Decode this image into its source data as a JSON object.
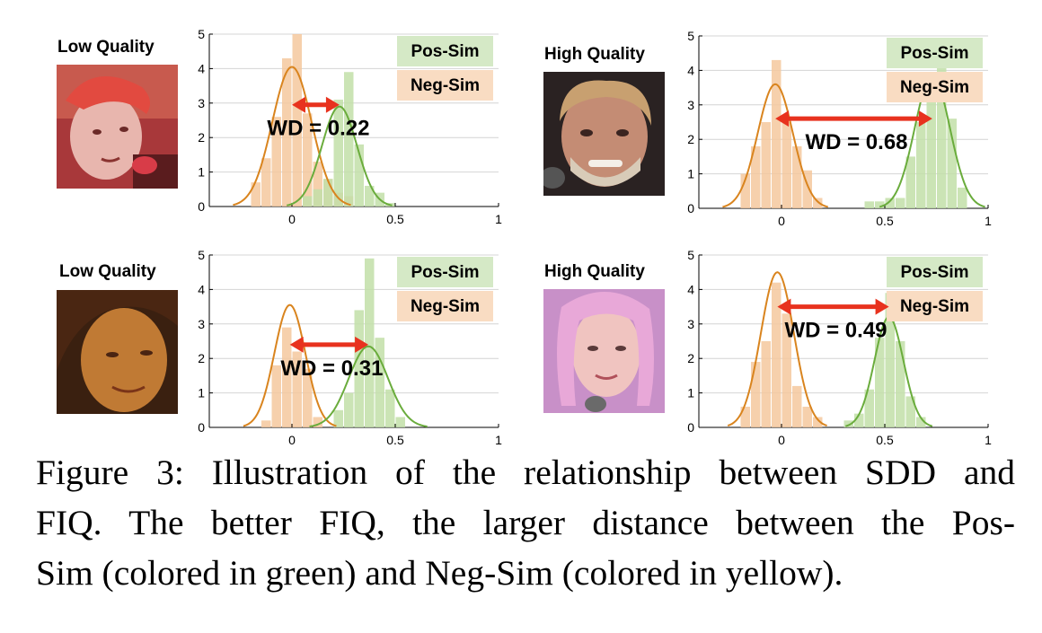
{
  "colors": {
    "pos_bar": "#c2dfa8",
    "neg_bar": "#f4c89e",
    "pos_curve": "#6aac3c",
    "neg_curve": "#d9841e",
    "arrow": "#e8321e",
    "grid": "#d4d4d4",
    "pos_legend_bg": "#d5e9c6",
    "neg_legend_bg": "#f9dcc2"
  },
  "panels": [
    {
      "quality_label": "Low Quality",
      "face_icon": "face-photo-red-tinted-singer",
      "legend": {
        "pos": "Pos-Sim",
        "neg": "Neg-Sim"
      },
      "wd_label": "WD = 0.22",
      "chart_data": {
        "type": "histogram",
        "xlim": [
          -0.4,
          1
        ],
        "ylim": [
          0,
          5
        ],
        "xticks": [
          "0",
          "0.5",
          "1"
        ],
        "yticks": [
          "0",
          "1",
          "2",
          "3",
          "4",
          "5"
        ],
        "grid": true,
        "legend_placement": "top-right",
        "bin_width": 0.05,
        "neg_sim": {
          "bins": [
            [
              -0.2,
              0.7
            ],
            [
              -0.15,
              1.4
            ],
            [
              -0.1,
              2.6
            ],
            [
              -0.05,
              4.3
            ],
            [
              0.0,
              5.0
            ],
            [
              0.05,
              2.7
            ],
            [
              0.1,
              1.3
            ],
            [
              0.15,
              0.8
            ],
            [
              0.2,
              0.4
            ],
            [
              0.25,
              0.3
            ]
          ],
          "fit": {
            "mean": 0.0,
            "peak": 4.05,
            "sd": 0.095
          }
        },
        "pos_sim": {
          "bins": [
            [
              0.05,
              0.3
            ],
            [
              0.1,
              0.5
            ],
            [
              0.15,
              0.8
            ],
            [
              0.2,
              3.1
            ],
            [
              0.25,
              3.9
            ],
            [
              0.3,
              1.8
            ],
            [
              0.35,
              0.6
            ],
            [
              0.4,
              0.4
            ],
            [
              0.45,
              0.1
            ]
          ],
          "fit": {
            "mean": 0.23,
            "peak": 2.9,
            "sd": 0.085
          }
        },
        "arrow": {
          "from": 0.0,
          "to": 0.23,
          "y": 2.95
        }
      }
    },
    {
      "quality_label": "High Quality",
      "face_icon": "face-photo-older-man-beard",
      "legend": {
        "pos": "Pos-Sim",
        "neg": "Neg-Sim"
      },
      "wd_label": "WD = 0.68",
      "chart_data": {
        "type": "histogram",
        "xlim": [
          -0.4,
          1
        ],
        "ylim": [
          0,
          5
        ],
        "xticks": [
          "0",
          "0.5",
          "1"
        ],
        "yticks": [
          "0",
          "1",
          "2",
          "3",
          "4",
          "5"
        ],
        "grid": true,
        "legend_placement": "top-right",
        "bin_width": 0.05,
        "neg_sim": {
          "bins": [
            [
              -0.2,
              1.0
            ],
            [
              -0.15,
              1.8
            ],
            [
              -0.1,
              2.5
            ],
            [
              -0.05,
              4.3
            ],
            [
              0.0,
              2.5
            ],
            [
              0.05,
              1.8
            ],
            [
              0.1,
              1.1
            ],
            [
              0.15,
              0.3
            ]
          ],
          "fit": {
            "mean": -0.03,
            "peak": 3.6,
            "sd": 0.085
          }
        },
        "pos_sim": {
          "bins": [
            [
              0.4,
              0.2
            ],
            [
              0.45,
              0.2
            ],
            [
              0.5,
              0.3
            ],
            [
              0.55,
              0.3
            ],
            [
              0.6,
              1.5
            ],
            [
              0.65,
              2.5
            ],
            [
              0.7,
              3.1
            ],
            [
              0.75,
              4.1
            ],
            [
              0.8,
              2.6
            ],
            [
              0.85,
              0.6
            ]
          ],
          "fit": {
            "mean": 0.73,
            "peak": 3.85,
            "sd": 0.085
          }
        },
        "arrow": {
          "from": -0.03,
          "to": 0.73,
          "y": 2.6
        }
      }
    },
    {
      "quality_label": "Low Quality",
      "face_icon": "face-photo-woman-dark-hair",
      "legend": {
        "pos": "Pos-Sim",
        "neg": "Neg-Sim"
      },
      "wd_label": "WD = 0.31",
      "chart_data": {
        "type": "histogram",
        "xlim": [
          -0.4,
          1
        ],
        "ylim": [
          0,
          5
        ],
        "xticks": [
          "0",
          "0.5",
          "1"
        ],
        "yticks": [
          "0",
          "1",
          "2",
          "3",
          "4",
          "5"
        ],
        "grid": true,
        "legend_placement": "top-right",
        "bin_width": 0.05,
        "neg_sim": {
          "bins": [
            [
              -0.15,
              0.2
            ],
            [
              -0.1,
              1.8
            ],
            [
              -0.05,
              2.9
            ],
            [
              0.0,
              2.2
            ],
            [
              0.05,
              1.7
            ],
            [
              0.1,
              0.3
            ]
          ],
          "fit": {
            "mean": -0.01,
            "peak": 3.55,
            "sd": 0.075
          }
        },
        "pos_sim": {
          "bins": [
            [
              0.2,
              0.5
            ],
            [
              0.25,
              1.0
            ],
            [
              0.3,
              3.4
            ],
            [
              0.35,
              4.9
            ],
            [
              0.4,
              2.6
            ],
            [
              0.45,
              1.1
            ],
            [
              0.5,
              0.3
            ]
          ],
          "fit": {
            "mean": 0.37,
            "peak": 2.35,
            "sd": 0.095
          }
        },
        "arrow": {
          "from": -0.01,
          "to": 0.37,
          "y": 2.4
        }
      }
    },
    {
      "quality_label": "High Quality",
      "face_icon": "face-photo-woman-pink-hair",
      "legend": {
        "pos": "Pos-Sim",
        "neg": "Neg-Sim"
      },
      "wd_label": "WD = 0.49",
      "chart_data": {
        "type": "histogram",
        "xlim": [
          -0.4,
          1
        ],
        "ylim": [
          0,
          5
        ],
        "xticks": [
          "0",
          "0.5",
          "1"
        ],
        "yticks": [
          "0",
          "1",
          "2",
          "3",
          "4",
          "5"
        ],
        "grid": true,
        "legend_placement": "top-right",
        "bin_width": 0.05,
        "neg_sim": {
          "bins": [
            [
              -0.2,
              0.6
            ],
            [
              -0.15,
              1.9
            ],
            [
              -0.1,
              2.5
            ],
            [
              -0.05,
              4.2
            ],
            [
              0.0,
              3.3
            ],
            [
              0.05,
              1.2
            ],
            [
              0.1,
              0.6
            ],
            [
              0.15,
              0.3
            ]
          ],
          "fit": {
            "mean": -0.02,
            "peak": 4.5,
            "sd": 0.08
          }
        },
        "pos_sim": {
          "bins": [
            [
              0.3,
              0.2
            ],
            [
              0.35,
              0.4
            ],
            [
              0.4,
              1.1
            ],
            [
              0.45,
              2.6
            ],
            [
              0.5,
              3.9
            ],
            [
              0.55,
              2.5
            ],
            [
              0.6,
              0.9
            ],
            [
              0.65,
              0.3
            ]
          ],
          "fit": {
            "mean": 0.52,
            "peak": 3.2,
            "sd": 0.07
          }
        },
        "arrow": {
          "from": -0.02,
          "to": 0.52,
          "y": 3.5
        }
      }
    }
  ],
  "caption": {
    "line1": "Figure 3: Illustration of the relationship between SDD and",
    "line2": "FIQ. The better FIQ, the larger distance between the Pos-",
    "line3": "Sim (colored in green) and Neg-Sim (colored in yellow)."
  }
}
